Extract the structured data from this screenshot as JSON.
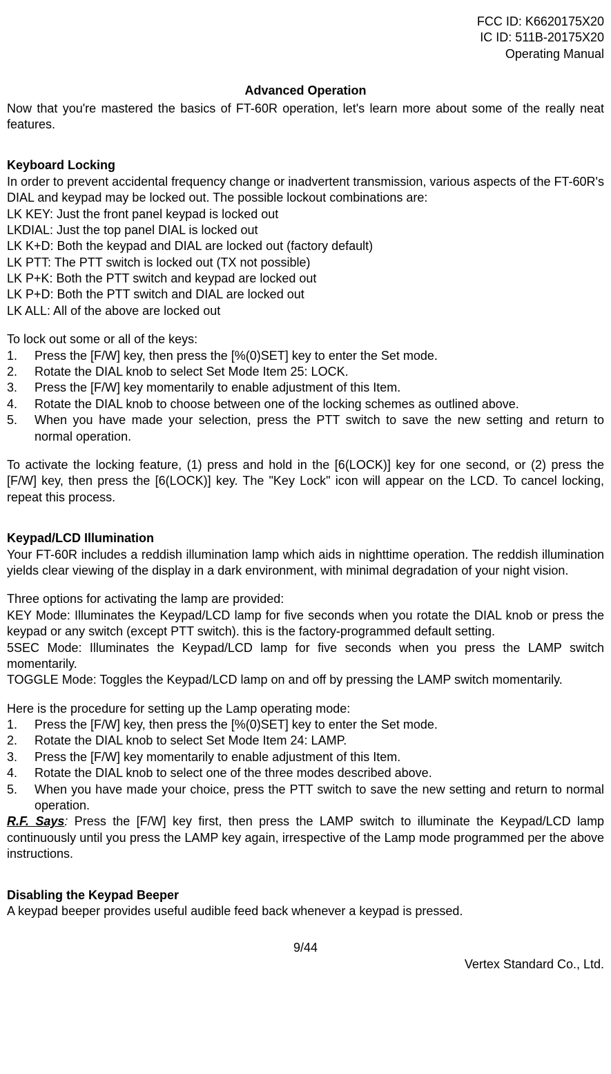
{
  "header": {
    "fcc": "FCC ID: K6620175X20",
    "ic": "IC ID: 511B-20175X20",
    "manual": "Operating Manual"
  },
  "title": "Advanced Operation",
  "intro": "Now that you're mastered the basics of FT-60R operation, let's learn more about some of the really neat features.",
  "section1": {
    "heading": "Keyboard Locking",
    "p1": "In order to prevent accidental frequency change or inadvertent transmission, various aspects of the FT-60R's DIAL and keypad may be locked out. The possible lockout combinations are:",
    "modes": [
      "LK KEY: Just the front panel keypad is locked out",
      "LKDIAL: Just the top panel DIAL is locked out",
      "LK K+D: Both the keypad and DIAL are locked out (factory default)",
      "LK PTT: The PTT switch is locked out (TX not possible)",
      "LK P+K: Both the PTT switch and keypad are locked out",
      "LK P+D: Both the PTT switch and DIAL are locked out",
      "LK ALL: All of the above are locked out"
    ],
    "p2": "To lock out some or all of the keys:",
    "steps": [
      "Press the [F/W] key, then press the [%(0)SET]  key to enter the Set mode.",
      "Rotate the DIAL knob to select Set Mode Item 25: LOCK.",
      "Press the [F/W] key momentarily to enable adjustment of this Item.",
      "Rotate the DIAL knob to choose between one of the locking schemes as outlined above.",
      "When you have made your selection, press the PTT switch to save the new setting and return to normal operation."
    ],
    "p3": "To activate the locking feature, (1) press and hold in the [6(LOCK)] key for one second, or (2) press the [F/W] key, then press the [6(LOCK)] key. The \"Key Lock\" icon will appear on the LCD. To cancel locking, repeat this process."
  },
  "section2": {
    "heading": "Keypad/LCD Illumination",
    "p1": "Your FT-60R includes a reddish illumination lamp which aids in nighttime operation. The reddish illumination yields clear viewing of the display in a dark environment, with minimal degradation of your night vision.",
    "p2": "Three options for activating the lamp are provided:",
    "modes": [
      "KEY Mode: Illuminates the Keypad/LCD lamp for five seconds when you rotate the DIAL knob or press the keypad or any switch (except PTT switch). this is the factory-programmed default setting.",
      "5SEC Mode: Illuminates the Keypad/LCD lamp for five seconds when you press the LAMP switch momentarily.",
      "TOGGLE Mode: Toggles the Keypad/LCD lamp on and off by pressing the LAMP switch momentarily."
    ],
    "p3": "Here is the procedure for setting up the Lamp operating mode:",
    "steps": [
      "Press the [F/W] key, then press the [%(0)SET] key to enter the Set mode.",
      "Rotate the DIAL knob to select Set Mode Item 24: LAMP.",
      "Press the [F/W] key momentarily to enable adjustment of this Item.",
      "Rotate the DIAL knob to select one of the three modes described above.",
      "When you have made your choice, press the PTT switch to save the new setting and return to normal operation."
    ],
    "rf_label": "R.F. Says",
    "rf_colon": ":",
    "rf_text": " Press the [F/W] key first, then press the LAMP switch to illuminate the Keypad/LCD lamp continuously until you press the LAMP key again, irrespective of the Lamp mode programmed per the above instructions."
  },
  "section3": {
    "heading": "Disabling the Keypad Beeper",
    "p1": "A keypad beeper provides useful audible feed back whenever a keypad is pressed."
  },
  "footer": {
    "page": "9/44",
    "company": "Vertex Standard Co., Ltd."
  }
}
